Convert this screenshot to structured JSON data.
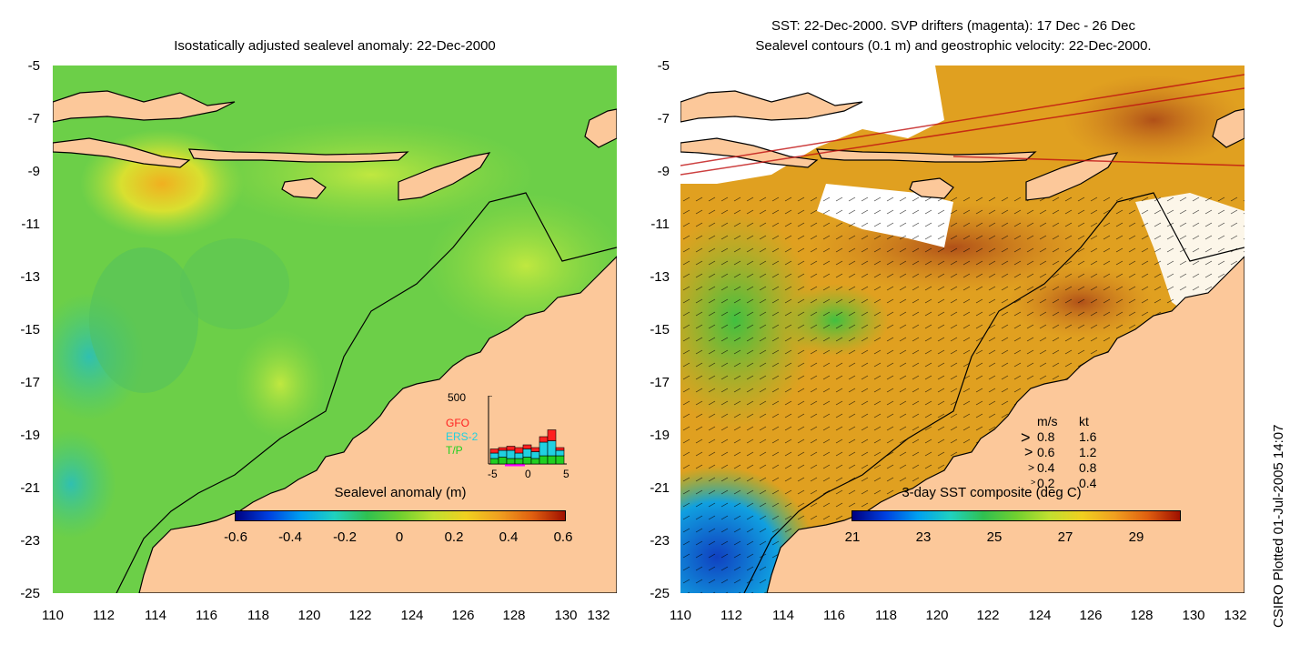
{
  "left_panel": {
    "title": "Isostatically adjusted sealevel anomaly: 22-Dec-2000",
    "colorbar_label": "Sealevel anomaly (m)",
    "colorbar_ticks": [
      "-0.6",
      "-0.4",
      "-0.2",
      "0",
      "0.2",
      "0.4",
      "0.6"
    ],
    "y_ticks": [
      "-5",
      "-7",
      "-9",
      "-11",
      "-13",
      "-15",
      "-17",
      "-19",
      "-21",
      "-23",
      "-25"
    ],
    "x_ticks": [
      "110",
      "112",
      "114",
      "116",
      "118",
      "120",
      "122",
      "124",
      "126",
      "128",
      "130",
      "132"
    ]
  },
  "right_panel": {
    "title_line1": "SST: 22-Dec-2000. SVP drifters (magenta): 17 Dec - 26 Dec",
    "title_line2": "Sealevel contours (0.1 m) and geostrophic velocity: 22-Dec-2000.",
    "colorbar_label": "3-day SST composite (deg C)",
    "colorbar_ticks": [
      "21",
      "23",
      "25",
      "27",
      "29"
    ],
    "y_ticks": [
      "-5",
      "-7",
      "-9",
      "-11",
      "-13",
      "-15",
      "-17",
      "-19",
      "-21",
      "-23",
      "-25"
    ],
    "x_ticks": [
      "110",
      "112",
      "114",
      "116",
      "118",
      "120",
      "122",
      "124",
      "126",
      "128",
      "130",
      "132"
    ],
    "velocity_legend": {
      "header_ms": "m/s",
      "header_kt": "kt",
      "rows": [
        {
          "ms": "0.8",
          "kt": "1.6"
        },
        {
          "ms": "0.6",
          "kt": "1.2"
        },
        {
          "ms": "0.4",
          "kt": "0.8"
        },
        {
          "ms": "0.2",
          "kt": "0.4"
        }
      ]
    }
  },
  "histogram": {
    "y_max_label": "500",
    "x_ticks": [
      "-5",
      "0",
      "5"
    ],
    "legend": [
      {
        "name": "GFO",
        "color": "#ff2020"
      },
      {
        "name": "ERS-2",
        "color": "#20d0e0"
      },
      {
        "name": "T/P",
        "color": "#20d020"
      }
    ],
    "bars": [
      {
        "tp": 40,
        "ers": 40,
        "gfo": 30
      },
      {
        "tp": 50,
        "ers": 50,
        "gfo": 20
      },
      {
        "tp": 40,
        "ers": 60,
        "gfo": 30
      },
      {
        "tp": 40,
        "ers": 40,
        "gfo": 40
      },
      {
        "tp": 50,
        "ers": 60,
        "gfo": 30
      },
      {
        "tp": 40,
        "ers": 50,
        "gfo": 30
      },
      {
        "tp": 60,
        "ers": 100,
        "gfo": 40
      },
      {
        "tp": 60,
        "ers": 110,
        "gfo": 80
      },
      {
        "tp": 60,
        "ers": 40,
        "gfo": 20
      }
    ]
  },
  "colors": {
    "land": "#fcc89a",
    "ocean_left": "#78d040",
    "ocean_right": "#e0a020"
  },
  "credit": "CSIRO Plotted 01-Jul-2005 14:07"
}
